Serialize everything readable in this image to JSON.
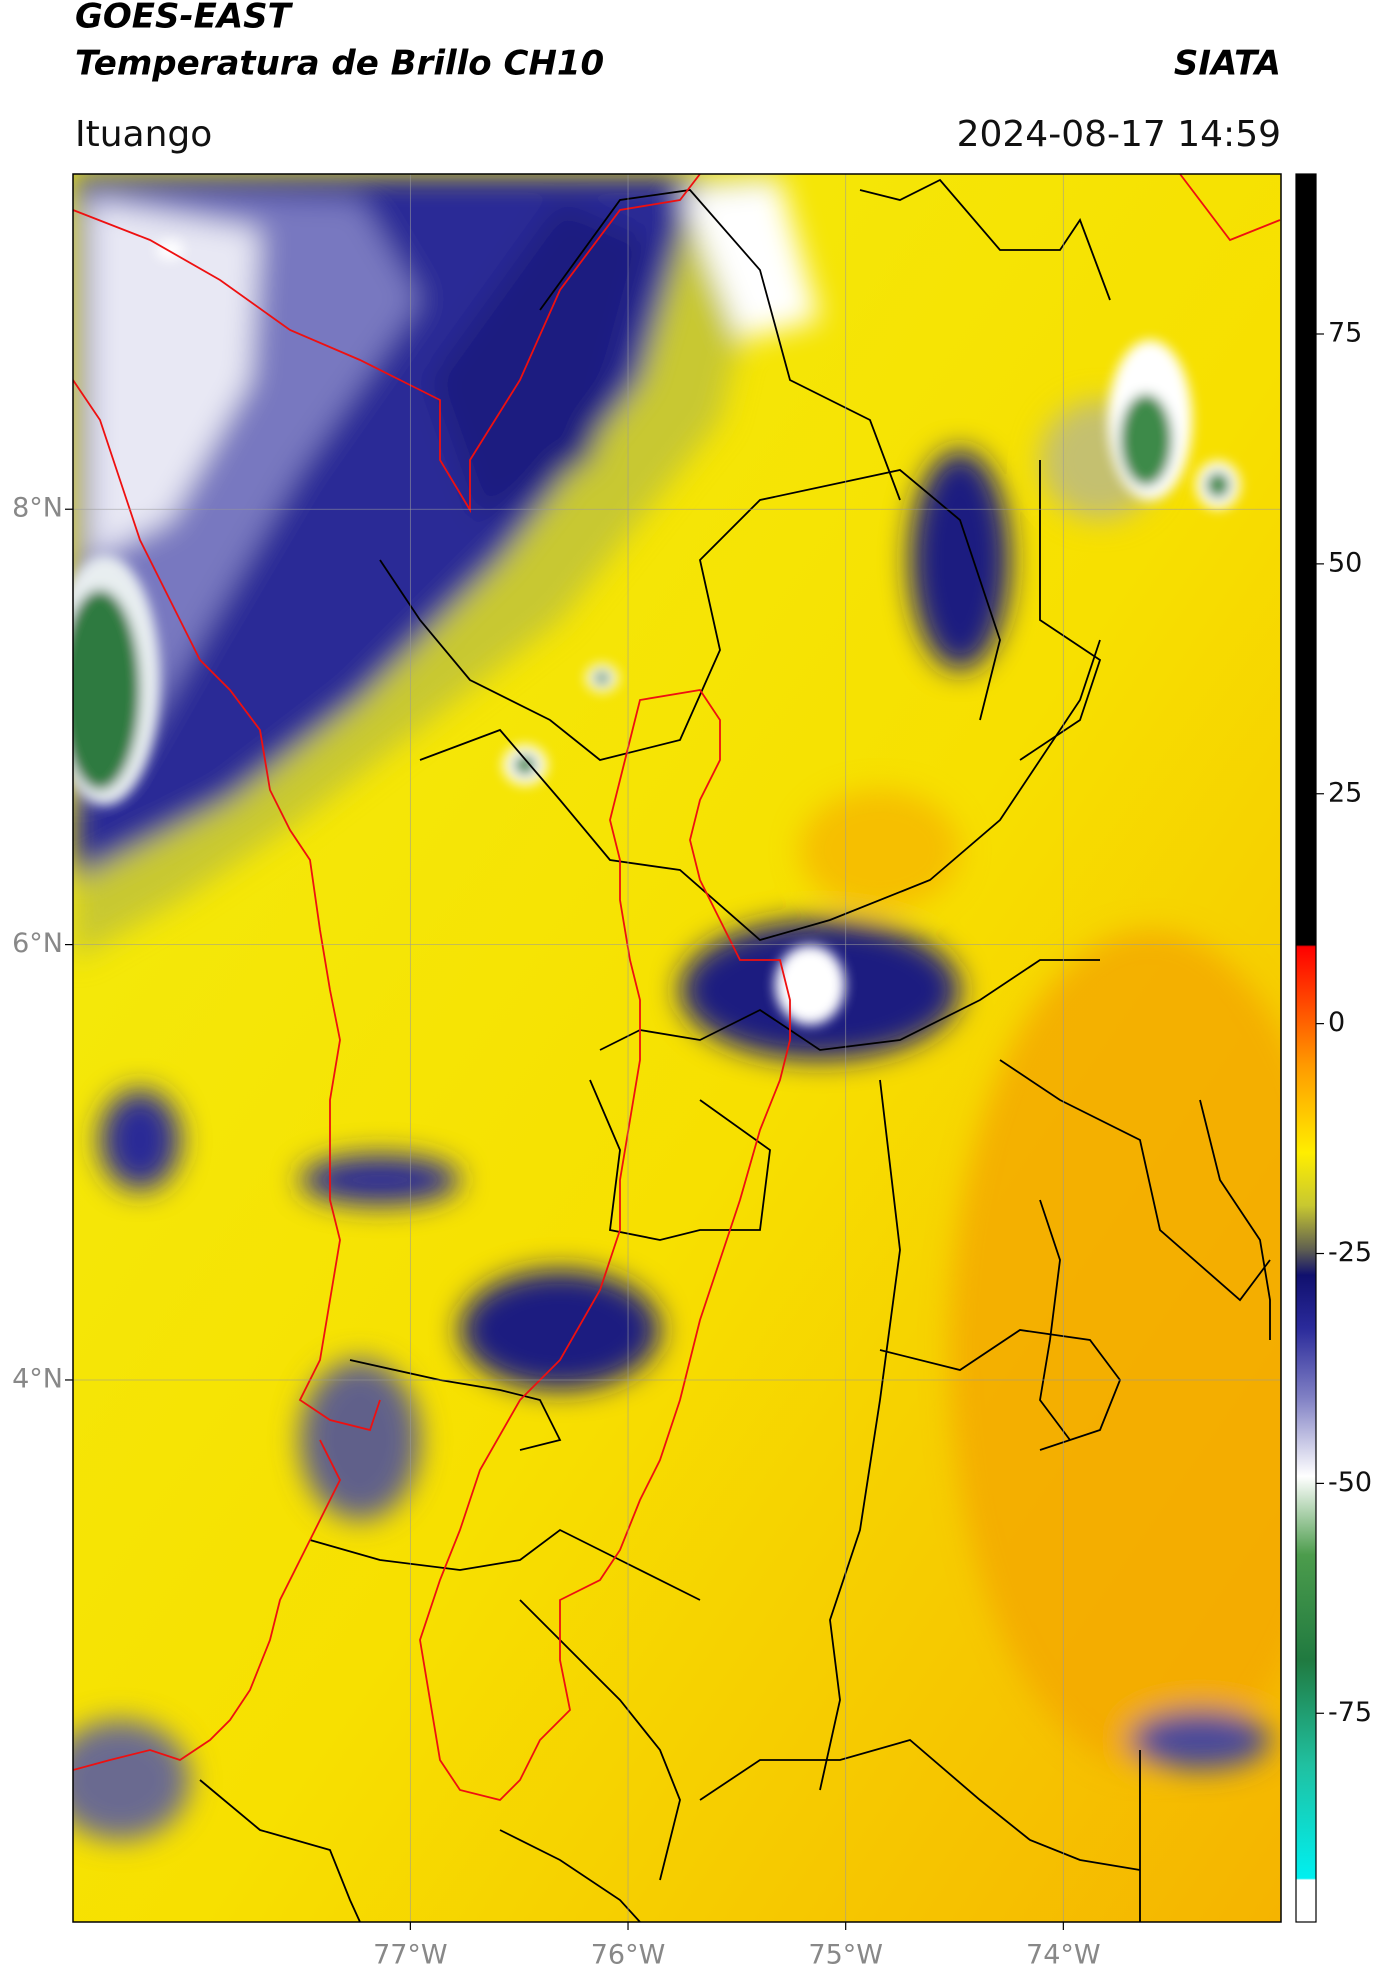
{
  "header": {
    "title": "GOES-EAST",
    "subtitle": "Temperatura de Brillo CH10",
    "brand": "SIATA",
    "location": "Ituango",
    "datetime": "2024-08-17 14:59"
  },
  "map": {
    "xlim": [
      -78.55,
      -73.0
    ],
    "ylim": [
      1.51,
      9.54
    ],
    "xticks": [
      {
        "value": -77,
        "label": "77°W"
      },
      {
        "value": -76,
        "label": "76°W"
      },
      {
        "value": -75,
        "label": "75°W"
      },
      {
        "value": -74,
        "label": "74°W"
      }
    ],
    "yticks": [
      {
        "value": 4,
        "label": "4°N"
      },
      {
        "value": 6,
        "label": "6°N"
      },
      {
        "value": 8,
        "label": "8°N"
      }
    ],
    "grid": true,
    "colorbar": {
      "lim": [
        -97.7,
        92.4
      ],
      "ticks": [
        -75,
        -50,
        -25,
        0,
        25,
        50,
        75
      ]
    }
  }
}
